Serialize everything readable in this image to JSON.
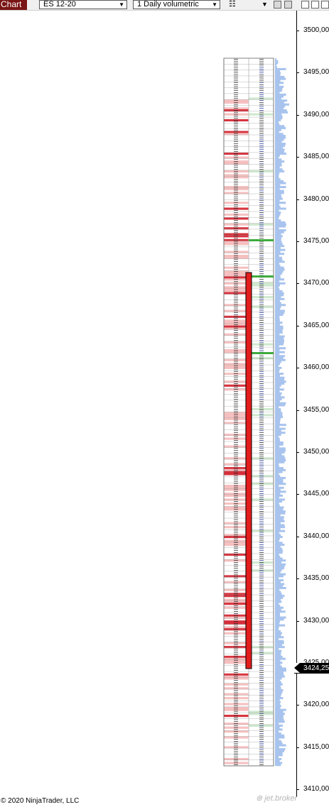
{
  "toolbar": {
    "chart_tab": "Chart",
    "instrument": "ES 12-20",
    "interval": "1 Daily volumetric",
    "chevron": "chevron-down-icon",
    "chart_style_icon": "bars-icon",
    "window_buttons": [
      "minimize-icon",
      "restore-icon",
      "close-icon"
    ]
  },
  "price_axis": {
    "labels": [
      "3500,00",
      "3495,00",
      "3490,00",
      "3485,00",
      "3480,00",
      "3475,00",
      "3470,00",
      "3465,00",
      "3460,00",
      "3455,00",
      "3450,00",
      "3445,00",
      "3440,00",
      "3435,00",
      "3430,00",
      "3425,00",
      "3420,00",
      "3415,00",
      "3410,00"
    ],
    "last_price": "3424,25"
  },
  "footer": {
    "copyright": "© 2020 NinjaTrader, LLC"
  },
  "colors": {
    "bid_strong": "#d0101e",
    "bid_soft": "#f4b6b6",
    "ask_green": "#3faa3f",
    "ask_soft": "#cfe8cf",
    "volume_profile": "#a8c4ee",
    "candle_fill": "#e41c1c",
    "background": "#ffffff"
  }
}
